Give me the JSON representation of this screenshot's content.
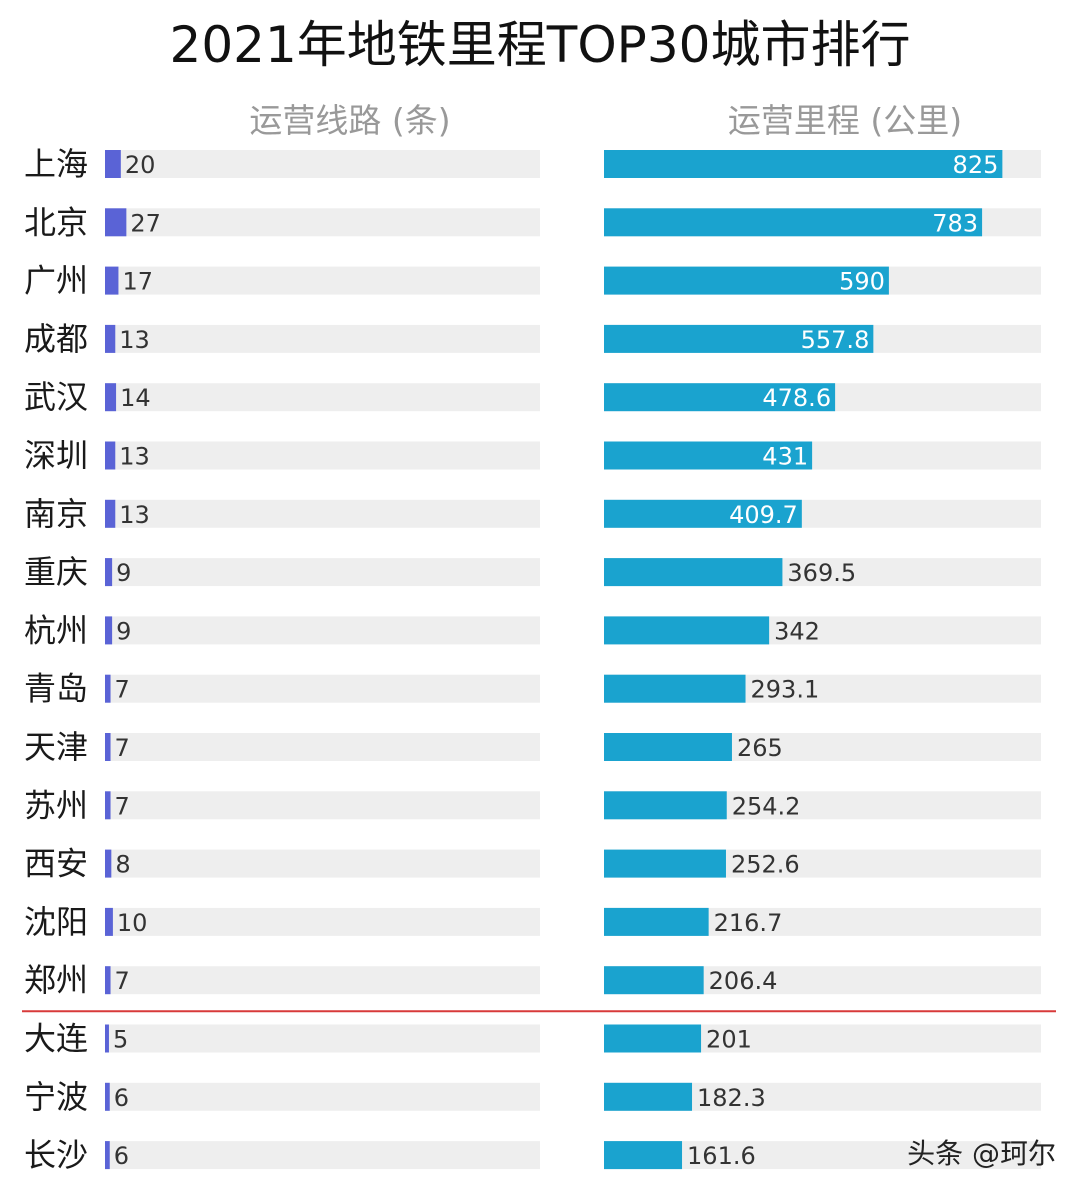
{
  "title": "2021年地铁里程TOP30城市排行",
  "watermark": "头条 @珂尔",
  "colors": {
    "lines_bar": "#5a63d6",
    "km_bar": "#1aa3cf",
    "track": "#eeeeee",
    "cutoff_line": "#d83a3a"
  },
  "chart_data": {
    "type": "bar",
    "orientation": "horizontal",
    "categories": [
      "上海",
      "北京",
      "广州",
      "成都",
      "武汉",
      "深圳",
      "南京",
      "重庆",
      "杭州",
      "青岛",
      "天津",
      "苏州",
      "西安",
      "沈阳",
      "郑州",
      "大连",
      "宁波",
      "长沙"
    ],
    "series": [
      {
        "name": "运营线路 (条)",
        "values": [
          20,
          27,
          17,
          13,
          14,
          13,
          13,
          9,
          9,
          7,
          7,
          7,
          8,
          10,
          7,
          5,
          6,
          6
        ]
      },
      {
        "name": "运营里程 (公里)",
        "values": [
          825,
          783,
          590,
          557.8,
          478.6,
          431,
          409.7,
          369.5,
          342,
          293.1,
          265,
          254.2,
          252.6,
          216.7,
          206.4,
          201,
          182.3,
          161.6
        ],
        "value_labels": [
          "825",
          "783",
          "590",
          "557.8",
          "478.6",
          "431",
          "409.7",
          "369.5",
          "342",
          "293.1",
          "265",
          "254.2",
          "252.6",
          "216.7",
          "206.4",
          "201",
          "182.3",
          "161.6"
        ]
      }
    ],
    "lines_axis_max": 550,
    "km_axis_max": 905,
    "cutoff_after": "郑州"
  }
}
